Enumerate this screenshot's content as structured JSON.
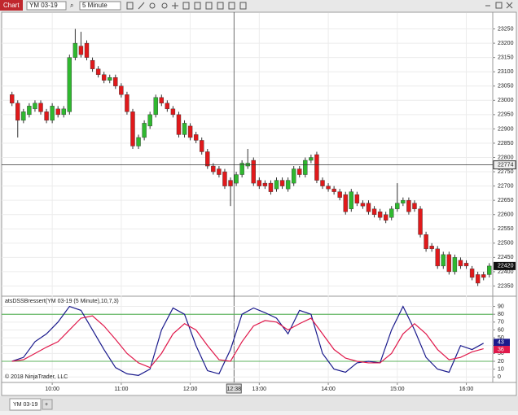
{
  "toolbar": {
    "app": "Chart",
    "instrument": "YM 03-19",
    "interval": "5 Minute"
  },
  "tabs": [
    "YM 03-19",
    "+"
  ],
  "chart_data": [
    {
      "type": "candlestick",
      "up_color": "#2fb82f",
      "down_color": "#e0191b",
      "x": [
        565,
        570,
        575,
        580,
        585,
        590,
        595,
        600,
        605,
        610,
        615,
        620,
        625,
        630,
        635,
        640,
        645,
        650,
        655,
        660,
        665,
        670,
        675,
        680,
        685,
        690,
        695,
        700,
        705,
        710,
        715,
        720,
        725,
        730,
        735,
        740,
        745,
        750,
        755,
        760,
        765,
        770,
        775,
        780,
        785,
        790,
        795,
        800,
        805,
        810,
        815,
        820,
        825,
        830,
        835,
        840,
        845,
        850,
        855,
        860,
        865,
        870,
        875,
        880,
        885,
        890,
        895,
        900,
        905,
        910,
        915,
        920,
        925,
        930,
        935,
        940,
        945,
        950,
        955,
        960,
        965,
        970,
        975,
        980
      ],
      "open": [
        23020,
        22990,
        22930,
        22950,
        22970,
        22990,
        22960,
        22930,
        22970,
        22950,
        22960,
        23150,
        23190,
        23200,
        23140,
        23110,
        23090,
        23070,
        23080,
        23050,
        23020,
        22960,
        22840,
        22870,
        22910,
        22950,
        23010,
        22990,
        22970,
        22950,
        22880,
        22910,
        22880,
        22860,
        22820,
        22770,
        22760,
        22750,
        22720,
        22710,
        22740,
        22770,
        22790,
        22720,
        22710,
        22710,
        22690,
        22720,
        22690,
        22710,
        22760,
        22740,
        22790,
        22810,
        22720,
        22700,
        22690,
        22680,
        22670,
        22620,
        22670,
        22640,
        22640,
        22620,
        22610,
        22600,
        22590,
        22620,
        22640,
        22650,
        22640,
        22620,
        22530,
        22490,
        22480,
        22420,
        22460,
        22400,
        22440,
        22430,
        22410,
        22390,
        22390,
        22390
      ],
      "high": [
        23030,
        23000,
        22970,
        22990,
        23000,
        23000,
        22970,
        22990,
        22980,
        22980,
        23160,
        23250,
        23240,
        23210,
        23150,
        23120,
        23100,
        23090,
        23090,
        23060,
        23030,
        22970,
        22880,
        22930,
        22960,
        23020,
        23020,
        23000,
        22980,
        22960,
        22930,
        22920,
        22890,
        22870,
        22830,
        22780,
        22770,
        22760,
        22730,
        22750,
        22790,
        22830,
        22800,
        22730,
        22720,
        22720,
        22730,
        22730,
        22730,
        22770,
        22770,
        22800,
        22810,
        22820,
        22730,
        22710,
        22700,
        22690,
        22680,
        22690,
        22680,
        22650,
        22650,
        22630,
        22620,
        22610,
        22630,
        22710,
        22660,
        22660,
        22650,
        22630,
        22540,
        22500,
        22490,
        22470,
        22470,
        22460,
        22450,
        22440,
        22420,
        22400,
        22400,
        22430
      ],
      "low": [
        22980,
        22870,
        22920,
        22940,
        22960,
        22950,
        22920,
        22920,
        22940,
        22940,
        22950,
        23140,
        23150,
        23140,
        23100,
        23080,
        23060,
        23060,
        23040,
        23010,
        22950,
        22830,
        22830,
        22860,
        22900,
        22940,
        22980,
        22960,
        22940,
        22870,
        22870,
        22860,
        22850,
        22810,
        22760,
        22740,
        22730,
        22690,
        22630,
        22700,
        22730,
        22760,
        22700,
        22690,
        22690,
        22670,
        22680,
        22690,
        22680,
        22700,
        22730,
        22730,
        22780,
        22710,
        22690,
        22680,
        22670,
        22650,
        22600,
        22610,
        22630,
        22620,
        22600,
        22590,
        22580,
        22570,
        22580,
        22610,
        22630,
        22600,
        22610,
        22520,
        22470,
        22470,
        22410,
        22410,
        22390,
        22390,
        22410,
        22410,
        22370,
        22350,
        22370,
        22380
      ],
      "close": [
        22990,
        22930,
        22960,
        22980,
        22990,
        22960,
        22930,
        22980,
        22950,
        22970,
        23150,
        23200,
        23160,
        23150,
        23110,
        23090,
        23070,
        23080,
        23050,
        23020,
        22960,
        22840,
        22870,
        22920,
        22950,
        23010,
        22990,
        22970,
        22950,
        22880,
        22920,
        22870,
        22860,
        22820,
        22770,
        22750,
        22740,
        22700,
        22700,
        22740,
        22780,
        22780,
        22710,
        22700,
        22700,
        22680,
        22720,
        22700,
        22720,
        22760,
        22740,
        22790,
        22800,
        22720,
        22700,
        22690,
        22680,
        22660,
        22610,
        22680,
        22640,
        22630,
        22610,
        22600,
        22590,
        22580,
        22620,
        22640,
        22650,
        22610,
        22620,
        22530,
        22480,
        22480,
        22420,
        22460,
        22400,
        22450,
        22420,
        22420,
        22380,
        22360,
        22380,
        22420
      ],
      "xlim": [
        556,
        983
      ],
      "xticks": [
        {
          "value": 600,
          "label": "10:00"
        },
        {
          "value": 660,
          "label": "11:00"
        },
        {
          "value": 720,
          "label": "12:00"
        },
        {
          "value": 780,
          "label": "13:00"
        },
        {
          "value": 840,
          "label": "14:00"
        },
        {
          "value": 900,
          "label": "15:00"
        },
        {
          "value": 960,
          "label": "16:00"
        }
      ],
      "ylim": [
        22320,
        23300
      ],
      "yticks": [
        22350,
        22400,
        22450,
        22500,
        22550,
        22600,
        22650,
        22700,
        22750,
        22800,
        22850,
        22900,
        22950,
        23000,
        23050,
        23100,
        23150,
        23200,
        23250
      ],
      "grid": true,
      "crosshair": {
        "x": {
          "value": 758,
          "label": "12:38"
        },
        "y": 22774
      }
    },
    {
      "type": "line",
      "title": "atsDSSBressert(YM 03-19 (5 Minute),10,7,3)",
      "annotation": "© 2018 NinjaTrader, LLC",
      "x": [
        565,
        575,
        585,
        595,
        605,
        615,
        625,
        635,
        645,
        655,
        665,
        675,
        685,
        695,
        705,
        715,
        725,
        735,
        745,
        755,
        765,
        775,
        785,
        795,
        805,
        815,
        825,
        835,
        845,
        855,
        865,
        875,
        885,
        895,
        905,
        915,
        925,
        935,
        945,
        955,
        965,
        975
      ],
      "series": [
        {
          "color": "#1a1a8c",
          "values": [
            20,
            25,
            45,
            55,
            70,
            90,
            85,
            60,
            35,
            12,
            4,
            2,
            10,
            60,
            88,
            80,
            40,
            8,
            4,
            35,
            80,
            88,
            82,
            75,
            55,
            85,
            80,
            30,
            10,
            6,
            18,
            20,
            18,
            60,
            90,
            60,
            25,
            10,
            6,
            40,
            35,
            43
          ]
        },
        {
          "color": "#e0194b",
          "values": [
            20,
            22,
            30,
            38,
            45,
            60,
            75,
            78,
            65,
            48,
            30,
            18,
            12,
            30,
            55,
            68,
            60,
            40,
            22,
            20,
            45,
            65,
            72,
            70,
            60,
            68,
            75,
            55,
            35,
            24,
            20,
            18,
            18,
            30,
            55,
            68,
            55,
            35,
            22,
            25,
            32,
            36
          ]
        }
      ],
      "levels": [
        80,
        20
      ],
      "level_color": "#2fa02f",
      "xlim": [
        556,
        983
      ],
      "ylim": [
        -7,
        102
      ],
      "yticks": [
        0,
        10,
        20,
        30,
        40,
        50,
        60,
        70,
        80,
        90
      ],
      "grid": true
    }
  ]
}
